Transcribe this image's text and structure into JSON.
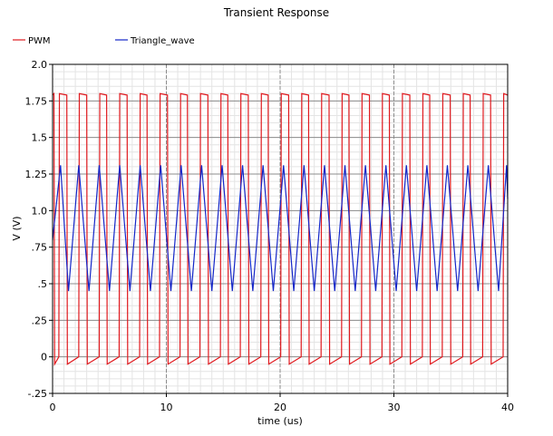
{
  "chart_data": {
    "type": "line",
    "title": "Transient Response",
    "xlabel": "time (us)",
    "ylabel": "V (V)",
    "xlim": [
      0,
      40
    ],
    "ylim": [
      -0.25,
      2.0
    ],
    "x_ticks": [
      {
        "value": 0,
        "label": "0"
      },
      {
        "value": 10,
        "label": "10"
      },
      {
        "value": 20,
        "label": "20"
      },
      {
        "value": 30,
        "label": "30"
      },
      {
        "value": 40,
        "label": "40"
      }
    ],
    "y_ticks": [
      {
        "value": 2.0,
        "label": "2.0"
      },
      {
        "value": 1.75,
        "label": "1.75"
      },
      {
        "value": 1.5,
        "label": "1.5"
      },
      {
        "value": 1.25,
        "label": "1.25"
      },
      {
        "value": 1.0,
        "label": "1.0"
      },
      {
        "value": 0.75,
        "label": ".75"
      },
      {
        "value": 0.5,
        "label": ".5"
      },
      {
        "value": 0.25,
        "label": ".25"
      },
      {
        "value": 0,
        "label": "0"
      },
      {
        "value": -0.25,
        "label": "-.25"
      }
    ],
    "grid": true,
    "legend_position": "top-left",
    "series": [
      {
        "name": "PWM",
        "color": "#e0191e",
        "x": [
          0,
          0.12,
          0.18,
          0.55,
          0.6,
          1.25,
          1.3,
          2.3,
          2.35,
          3.0,
          3.05,
          4.1,
          4.15,
          4.75,
          4.8,
          5.85,
          5.9,
          6.55,
          6.6,
          7.65,
          7.7,
          8.3,
          8.35,
          9.4,
          9.45,
          10.1,
          10.15,
          11.2,
          11.25,
          11.85,
          11.9,
          12.95,
          13.0,
          13.65,
          13.7,
          14.75,
          14.8,
          15.4,
          15.45,
          16.5,
          16.55,
          17.2,
          17.25,
          18.3,
          18.35,
          18.95,
          19.0,
          20.05,
          20.1,
          20.75,
          20.8,
          21.85,
          21.9,
          22.5,
          22.55,
          23.6,
          23.65,
          24.3,
          24.35,
          25.4,
          25.45,
          26.05,
          26.1,
          27.15,
          27.2,
          27.85,
          27.9,
          28.95,
          28.99,
          29.6,
          29.65,
          30.7,
          30.75,
          31.4,
          31.45,
          32.5,
          32.55,
          33.15,
          33.2,
          34.25,
          34.3,
          34.95,
          35.0,
          36.05,
          36.1,
          36.7,
          36.75,
          37.8,
          37.85,
          38.5,
          38.55,
          39.6,
          39.65,
          40
        ],
        "y": [
          1.79,
          1.8,
          -0.05,
          0.0,
          1.8,
          1.79,
          -0.05,
          0.0,
          1.8,
          1.79,
          -0.05,
          0.0,
          1.8,
          1.79,
          -0.05,
          0.0,
          1.8,
          1.79,
          -0.05,
          0.0,
          1.8,
          1.79,
          -0.05,
          0.0,
          1.8,
          1.79,
          -0.05,
          0.0,
          1.8,
          1.79,
          -0.05,
          0.0,
          1.8,
          1.79,
          -0.05,
          0.0,
          1.8,
          1.79,
          -0.05,
          0.0,
          1.8,
          1.79,
          -0.05,
          0.0,
          1.8,
          1.79,
          -0.05,
          0.0,
          1.8,
          1.79,
          -0.05,
          0.0,
          1.8,
          1.79,
          -0.05,
          0.0,
          1.8,
          1.79,
          -0.05,
          0.0,
          1.8,
          1.79,
          -0.05,
          0.0,
          1.8,
          1.79,
          -0.05,
          0.0,
          1.8,
          1.79,
          -0.05,
          0.0,
          1.8,
          1.79,
          -0.05,
          0.0,
          1.8,
          1.79,
          -0.05,
          0.0,
          1.8,
          1.79,
          -0.05,
          0.0,
          1.8,
          1.79,
          -0.05,
          0.0,
          1.8,
          1.79,
          -0.05,
          0.0,
          1.8,
          1.79
        ]
      },
      {
        "name": "Triangle_wave",
        "color": "#1426c8",
        "x": [
          0,
          0.7,
          1.4,
          2.3,
          3.2,
          4.1,
          5.0,
          5.9,
          6.8,
          7.7,
          8.6,
          9.5,
          10.4,
          11.3,
          12.2,
          13.1,
          14.0,
          14.9,
          15.8,
          16.7,
          17.6,
          18.5,
          19.4,
          20.3,
          21.2,
          22.1,
          23.0,
          23.9,
          24.8,
          25.7,
          26.6,
          27.5,
          28.4,
          29.3,
          30.2,
          31.1,
          32.0,
          32.9,
          33.8,
          34.7,
          35.6,
          36.5,
          37.4,
          38.3,
          39.2,
          39.9,
          40
        ],
        "y": [
          0.8,
          1.31,
          0.45,
          1.31,
          0.45,
          1.31,
          0.45,
          1.31,
          0.45,
          1.31,
          0.45,
          1.31,
          0.45,
          1.31,
          0.45,
          1.31,
          0.45,
          1.31,
          0.45,
          1.31,
          0.45,
          1.31,
          0.45,
          1.31,
          0.45,
          1.31,
          0.45,
          1.31,
          0.45,
          1.31,
          0.45,
          1.31,
          0.45,
          1.31,
          0.45,
          1.31,
          0.45,
          1.31,
          0.45,
          1.31,
          0.45,
          1.31,
          0.45,
          1.31,
          0.45,
          1.31,
          1.08
        ]
      }
    ]
  }
}
